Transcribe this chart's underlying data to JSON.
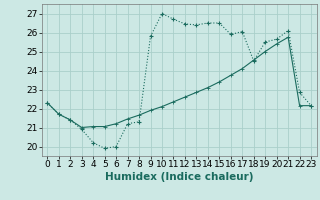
{
  "xlabel": "Humidex (Indice chaleur)",
  "bg_color": "#cce8e4",
  "grid_color": "#aacfca",
  "line_color": "#1a6b5e",
  "xlim": [
    -0.5,
    23.5
  ],
  "ylim": [
    19.5,
    27.5
  ],
  "xticks": [
    0,
    1,
    2,
    3,
    4,
    5,
    6,
    7,
    8,
    9,
    10,
    11,
    12,
    13,
    14,
    15,
    16,
    17,
    18,
    19,
    20,
    21,
    22,
    23
  ],
  "yticks": [
    20,
    21,
    22,
    23,
    24,
    25,
    26,
    27
  ],
  "curve1_x": [
    0,
    1,
    2,
    3,
    4,
    5,
    6,
    7,
    8,
    9,
    10,
    11,
    12,
    13,
    14,
    15,
    16,
    17,
    18,
    19,
    20,
    21,
    22,
    23
  ],
  "curve1_y": [
    22.3,
    21.7,
    21.4,
    20.9,
    20.2,
    19.9,
    20.0,
    21.2,
    21.3,
    25.8,
    27.0,
    26.7,
    26.45,
    26.4,
    26.5,
    26.5,
    25.9,
    26.05,
    24.5,
    25.5,
    25.65,
    26.1,
    22.85,
    22.15
  ],
  "curve2_x": [
    0,
    1,
    2,
    3,
    4,
    5,
    6,
    7,
    8,
    9,
    10,
    11,
    12,
    13,
    14,
    15,
    16,
    17,
    18,
    19,
    20,
    21,
    22,
    23
  ],
  "curve2_y": [
    22.3,
    21.7,
    21.4,
    21.0,
    21.05,
    21.05,
    21.2,
    21.45,
    21.65,
    21.9,
    22.1,
    22.35,
    22.6,
    22.85,
    23.1,
    23.4,
    23.75,
    24.1,
    24.55,
    25.0,
    25.4,
    25.75,
    22.15,
    22.15
  ],
  "xlabel_fontsize": 7.5,
  "tick_fontsize": 6.5
}
